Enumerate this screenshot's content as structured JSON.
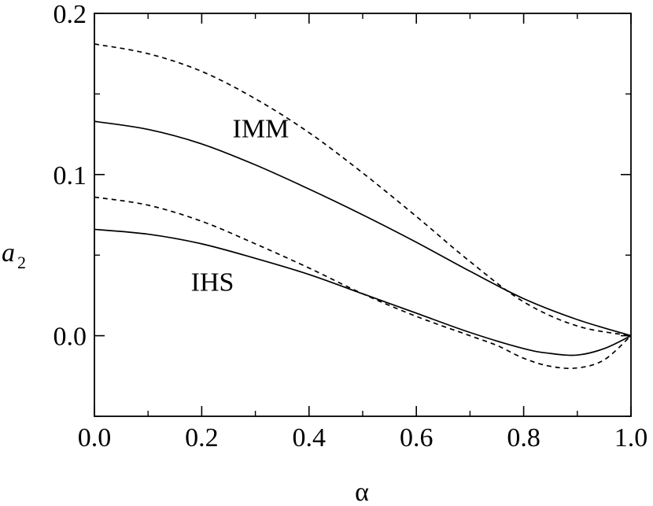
{
  "chart_data": {
    "type": "line",
    "xlabel": "α",
    "ylabel_main": "a",
    "ylabel_sub": "2",
    "xlim": [
      0.0,
      1.0
    ],
    "ylim": [
      -0.05,
      0.2
    ],
    "x_ticks": [
      {
        "value": 0.0,
        "label": "0.0"
      },
      {
        "value": 0.2,
        "label": "0.2"
      },
      {
        "value": 0.4,
        "label": "0.4"
      },
      {
        "value": 0.6,
        "label": "0.6"
      },
      {
        "value": 0.8,
        "label": "0.8"
      },
      {
        "value": 1.0,
        "label": "1.0"
      }
    ],
    "x_minor_ticks": [
      0.1,
      0.3,
      0.5,
      0.7,
      0.9
    ],
    "y_ticks": [
      {
        "value": 0.0,
        "label": "0.0"
      },
      {
        "value": 0.1,
        "label": "0.1"
      },
      {
        "value": 0.2,
        "label": "0.2"
      }
    ],
    "y_minor_ticks": [
      -0.05,
      0.05,
      0.15
    ],
    "grid": false,
    "series": [
      {
        "style": "solid",
        "x": [
          0.0,
          0.1,
          0.2,
          0.3,
          0.4,
          0.5,
          0.6,
          0.7,
          0.8,
          0.9,
          1.0
        ],
        "y": [
          0.133,
          0.128,
          0.119,
          0.106,
          0.091,
          0.075,
          0.058,
          0.04,
          0.023,
          0.01,
          0.0
        ]
      },
      {
        "style": "dashed",
        "x": [
          0.0,
          0.1,
          0.2,
          0.3,
          0.4,
          0.5,
          0.6,
          0.7,
          0.8,
          0.9,
          1.0
        ],
        "y": [
          0.181,
          0.175,
          0.164,
          0.147,
          0.126,
          0.101,
          0.074,
          0.046,
          0.021,
          0.006,
          0.0
        ]
      },
      {
        "style": "solid",
        "x": [
          0.0,
          0.1,
          0.2,
          0.3,
          0.4,
          0.5,
          0.6,
          0.7,
          0.8,
          0.85,
          0.9,
          0.95,
          1.0
        ],
        "y": [
          0.066,
          0.063,
          0.057,
          0.048,
          0.038,
          0.026,
          0.014,
          0.002,
          -0.008,
          -0.011,
          -0.012,
          -0.008,
          0.0
        ]
      },
      {
        "style": "dashed",
        "x": [
          0.0,
          0.1,
          0.2,
          0.3,
          0.4,
          0.5,
          0.6,
          0.7,
          0.75,
          0.8,
          0.85,
          0.9,
          0.95,
          1.0
        ],
        "y": [
          0.086,
          0.081,
          0.071,
          0.057,
          0.042,
          0.026,
          0.012,
          0.0,
          -0.006,
          -0.014,
          -0.019,
          -0.02,
          -0.015,
          0.0
        ]
      }
    ],
    "annotations": [
      {
        "text": "IMM",
        "x": 0.31,
        "y": 0.123
      },
      {
        "text": "IHS",
        "x": 0.22,
        "y": 0.028
      }
    ]
  }
}
